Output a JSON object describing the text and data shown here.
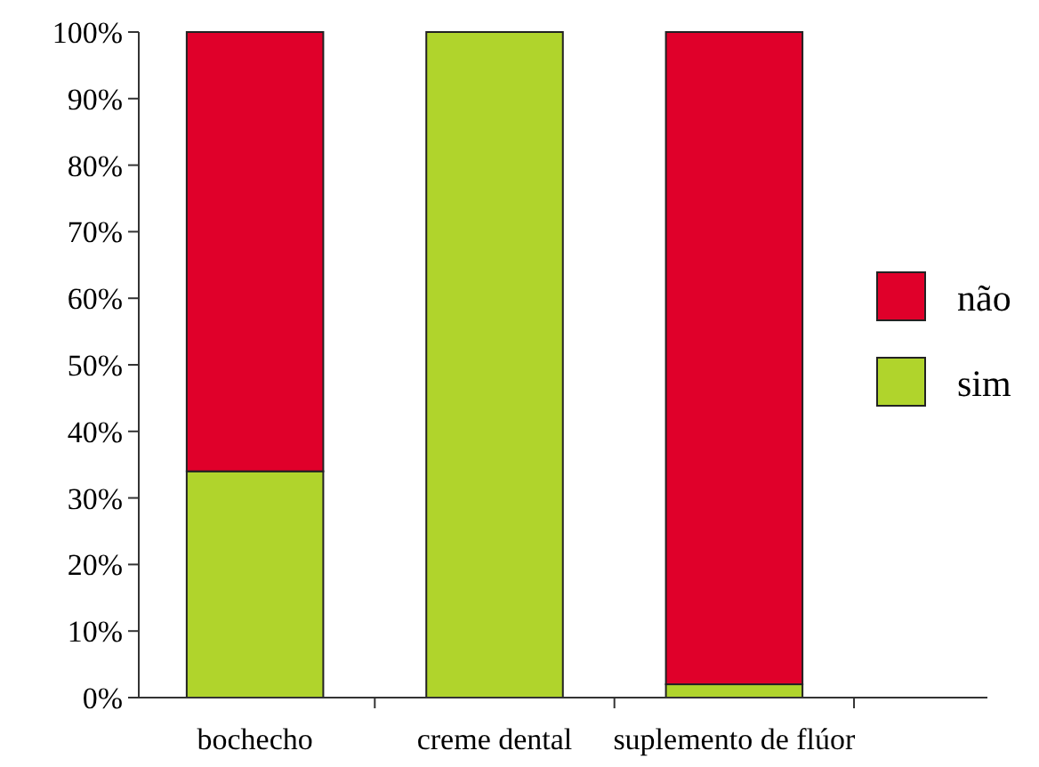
{
  "chart_data": {
    "type": "bar",
    "stacked": true,
    "categories": [
      "bochecho",
      "creme dental",
      "suplemento de flúor"
    ],
    "series": [
      {
        "name": "sim",
        "color": "#b0d42c",
        "values": [
          34,
          100,
          2
        ]
      },
      {
        "name": "não",
        "color": "#e0002a",
        "values": [
          66,
          0,
          98
        ]
      }
    ],
    "ylim": [
      0,
      100
    ],
    "yticks": [
      {
        "value": 0,
        "label": "0%"
      },
      {
        "value": 10,
        "label": "10%"
      },
      {
        "value": 20,
        "label": "20%"
      },
      {
        "value": 30,
        "label": "30%"
      },
      {
        "value": 40,
        "label": "40%"
      },
      {
        "value": 50,
        "label": "50%"
      },
      {
        "value": 60,
        "label": "60%"
      },
      {
        "value": 70,
        "label": "70%"
      },
      {
        "value": 80,
        "label": "80%"
      },
      {
        "value": 90,
        "label": "90%"
      },
      {
        "value": 100,
        "label": "100%"
      }
    ],
    "legend": "right",
    "grid": false
  }
}
